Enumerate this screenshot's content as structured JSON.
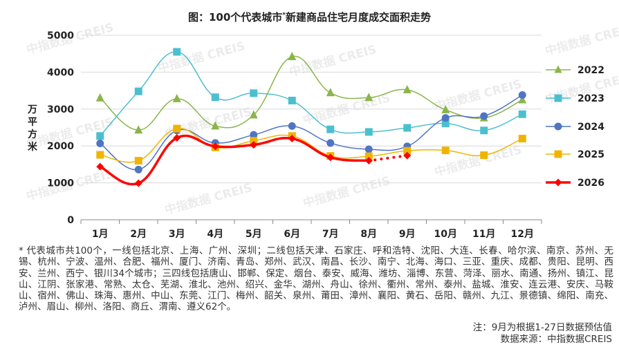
{
  "title": "图：100个代表城市",
  "title_sup": "*",
  "title_suffix": "新建商品住宅月度成交面积走势",
  "ylabel": "万平方米",
  "watermark": "中指数据 CREIS",
  "footnote": "* 代表城市共100个，一线包括北京、上海、广州、深圳；二线包括天津、石家庄、呼和浩特、沈阳、大连、长春、哈尔滨、南京、苏州、无锡、杭州、宁波、温州、合肥、福州、厦门、济南、青岛、郑州、武汉、南昌、长沙、南宁、北海、海口、三亚、重庆、成都、贵阳、昆明、西安、兰州、西宁、银川34个城市；三四线包括唐山、邯郸、保定、烟台、泰安、威海、潍坊、淄博、东营、菏泽、丽水、南通、扬州、镇江、昆山、江阴、张家港、常熟、太仓、芜湖、淮北、池州、绍兴、金华、湖州、舟山、徐州、衢州、常州、泰州、盐城、淮安、连云港、安庆、马鞍山、宿州、佛山、珠海、惠州、中山、东莞、江门、梅州、韶关、泉州、莆田、漳州、襄阳、黄石、岳阳、赣州、九江、景德镇、绵阳、南充、泸州、眉山、柳州、洛阳、商丘、渭南、遵义62个。",
  "note1": "注：9月为根据1-27日数据预估值",
  "note2": "数据来源：中指数据CREIS",
  "chart_data": {
    "type": "line",
    "categories": [
      "1月",
      "2月",
      "3月",
      "4月",
      "5月",
      "6月",
      "7月",
      "8月",
      "9月",
      "10月",
      "11月",
      "12月"
    ],
    "yticks": [
      0,
      1000,
      2000,
      3000,
      4000,
      5000
    ],
    "ylim": [
      0,
      5000
    ],
    "ylabel": "万平方米",
    "legend_position": "right",
    "series": [
      {
        "name": "2022",
        "color": "#8ab54a",
        "marker": "triangle",
        "smooth": true,
        "values": [
          3300,
          2430,
          3280,
          2540,
          2840,
          4420,
          3440,
          3310,
          3520,
          2980,
          2760,
          3250
        ]
      },
      {
        "name": "2023",
        "color": "#4cbfcf",
        "marker": "square",
        "smooth": true,
        "values": [
          2270,
          3480,
          4550,
          3320,
          3430,
          3230,
          2450,
          2380,
          2490,
          2610,
          2420,
          2860
        ]
      },
      {
        "name": "2024",
        "color": "#4f75c4",
        "marker": "circle",
        "smooth": true,
        "values": [
          2070,
          1360,
          2420,
          2080,
          2300,
          2540,
          2080,
          1910,
          1990,
          2760,
          2810,
          3380
        ]
      },
      {
        "name": "2025",
        "color": "#f0b400",
        "marker": "square",
        "smooth": true,
        "values": [
          1760,
          1600,
          2470,
          1960,
          2140,
          2270,
          1730,
          1720,
          1870,
          1880,
          1750,
          2200
        ]
      },
      {
        "name": "2026",
        "color": "#ff0000",
        "marker": "diamond",
        "smooth": true,
        "bold": true,
        "values": [
          1440,
          990,
          2220,
          1990,
          2030,
          2200,
          1690,
          1600,
          null,
          null,
          null,
          null
        ],
        "estimate": {
          "from_index": 7,
          "to_index": 8,
          "values": [
            1600,
            1740
          ],
          "style": "dotted"
        }
      }
    ]
  }
}
